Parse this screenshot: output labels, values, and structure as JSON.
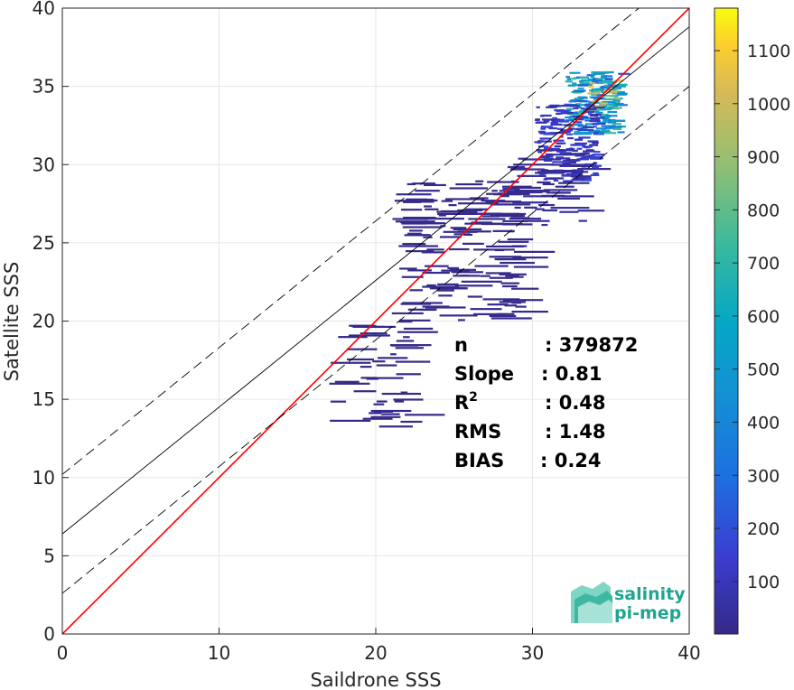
{
  "chart_data": {
    "type": "heatmap",
    "subtype": "2D density scatter with regression lines",
    "xlabel": "Saildrone SSS",
    "ylabel": "Satellite SSS",
    "xlim": [
      0,
      40
    ],
    "ylim": [
      0,
      40
    ],
    "xticks": [
      "0",
      "10",
      "20",
      "30",
      "40"
    ],
    "yticks": [
      "0",
      "5",
      "10",
      "15",
      "20",
      "25",
      "30",
      "35",
      "40"
    ],
    "grid": true,
    "colormap": "parula",
    "colorbar": {
      "range": [
        1,
        1180
      ],
      "ticks": [
        "100",
        "200",
        "300",
        "400",
        "500",
        "600",
        "700",
        "800",
        "900",
        "1000",
        "1100"
      ]
    },
    "lines": [
      {
        "name": "identity",
        "color": "#ff0000",
        "style": "solid",
        "intercept": 0,
        "slope": 1
      },
      {
        "name": "regression",
        "color": "#000000",
        "style": "solid",
        "intercept": 6.4,
        "slope": 0.81
      },
      {
        "name": "regression-upper",
        "color": "#000000",
        "style": "dashed",
        "intercept": 10.2,
        "slope": 0.81
      },
      {
        "name": "regression-lower",
        "color": "#000000",
        "style": "dashed",
        "intercept": 2.6,
        "slope": 0.81
      }
    ],
    "density_regions": [
      {
        "x": [
          32,
          35.5
        ],
        "y": [
          32,
          36
        ],
        "level": 600
      },
      {
        "x": [
          33.5,
          35.3
        ],
        "y": [
          33.5,
          35.5
        ],
        "level": 900
      },
      {
        "x": [
          30,
          34
        ],
        "y": [
          29,
          34
        ],
        "level": 150
      },
      {
        "x": [
          28,
          33
        ],
        "y": [
          26,
          31
        ],
        "level": 40
      },
      {
        "x": [
          21,
          29
        ],
        "y": [
          20,
          29
        ],
        "level": 10
      },
      {
        "x": [
          17,
          22
        ],
        "y": [
          13,
          20
        ],
        "level": 3
      }
    ],
    "stats": [
      {
        "label": "n",
        "value": ": 379872"
      },
      {
        "label": "Slope",
        "value": ": 0.81"
      },
      {
        "label": "R",
        "sup": "2",
        "value": ": 0.48"
      },
      {
        "label": "RMS",
        "value": ": 1.48"
      },
      {
        "label": "BIAS",
        "value": ": 0.24"
      }
    ]
  },
  "logo": {
    "line1": "salinity",
    "line2": "pi-mep"
  }
}
